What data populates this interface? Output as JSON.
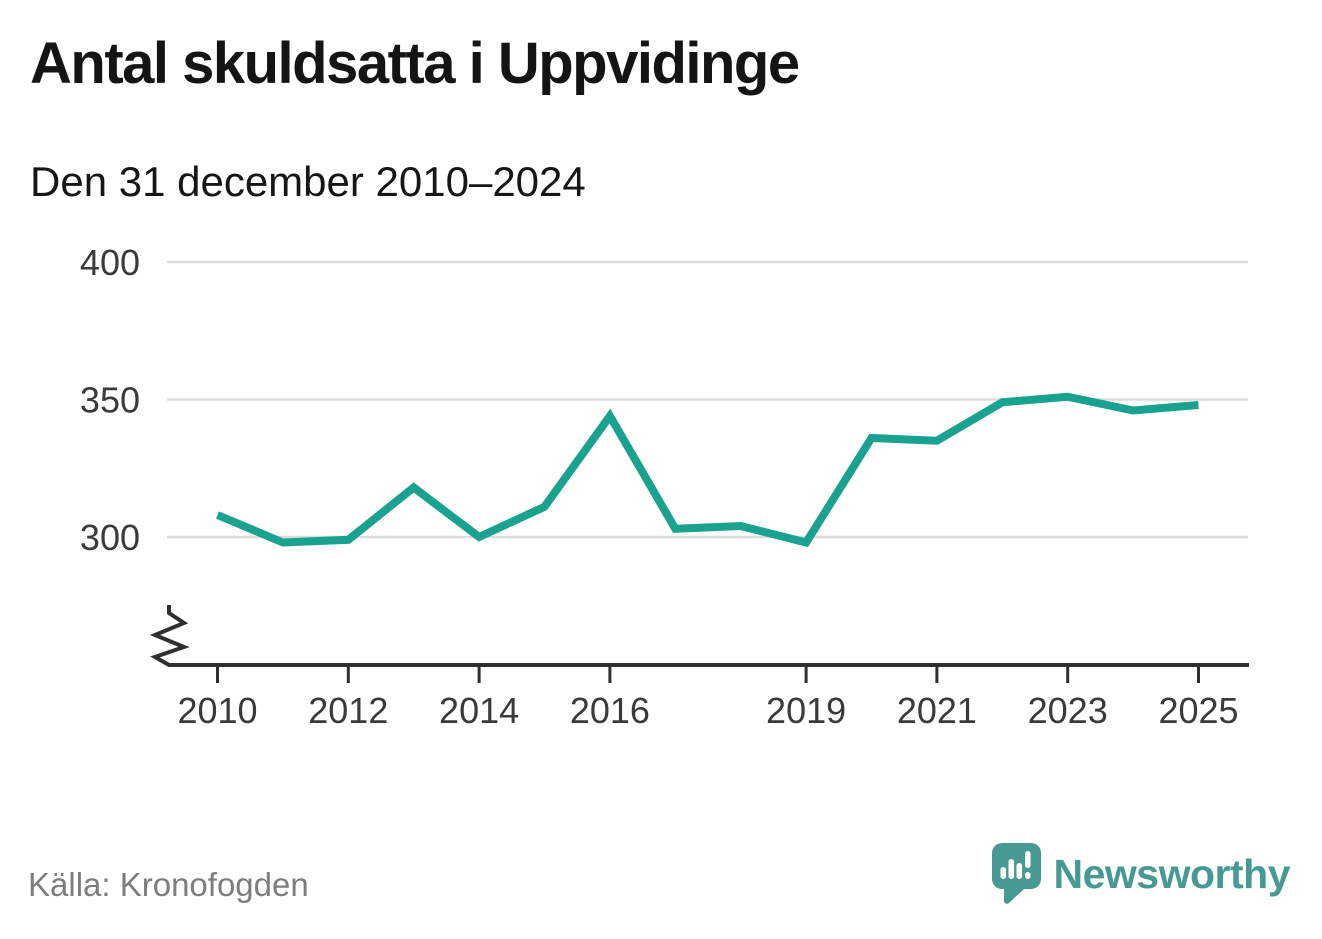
{
  "header": {
    "title": "Antal skuldsatta i Uppvidinge",
    "subtitle": "Den 31 december 2010–2024"
  },
  "footer": {
    "source": "Källa: Kronofogden",
    "brand": "Newsworthy"
  },
  "colors": {
    "line": "#18a28f",
    "grid": "#dbdbdb",
    "axis": "#2f2f2f",
    "tick_label": "#3a3a3a",
    "title_text": "#141414",
    "source_gray": "#7d7d7d",
    "brand_teal": "#479a94"
  },
  "chart_data": {
    "type": "line",
    "title": "Antal skuldsatta i Uppvidinge",
    "subtitle": "Den 31 december 2010–2024",
    "x": [
      2010,
      2011,
      2012,
      2013,
      2014,
      2015,
      2016,
      2017,
      2018,
      2019,
      2020,
      2021,
      2022,
      2023,
      2024,
      2025
    ],
    "values": [
      308,
      298,
      299,
      318,
      300,
      311,
      344,
      303,
      304,
      298,
      336,
      335,
      349,
      351,
      346,
      348
    ],
    "x_tick_labels": [
      "2010",
      "2012",
      "2014",
      "2016",
      "2019",
      "2021",
      "2023",
      "2025"
    ],
    "y_ticks": [
      300,
      350,
      400
    ],
    "ylim": [
      300,
      400
    ],
    "y_axis_break": true,
    "grid": "horizontal",
    "legend": "none",
    "source": "Källa: Kronofogden"
  }
}
